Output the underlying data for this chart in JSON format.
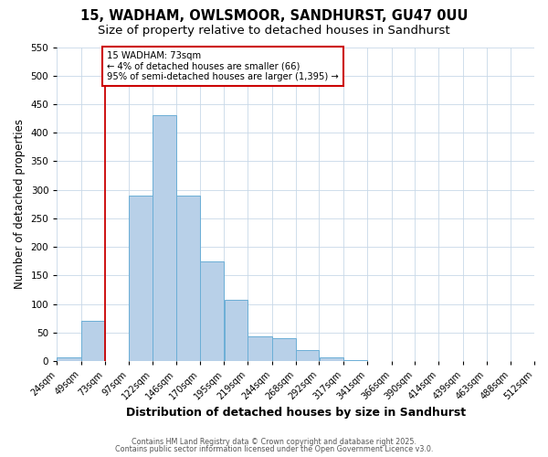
{
  "title1": "15, WADHAM, OWLSMOOR, SANDHURST, GU47 0UU",
  "title2": "Size of property relative to detached houses in Sandhurst",
  "xlabel": "Distribution of detached houses by size in Sandhurst",
  "ylabel": "Number of detached properties",
  "bar_color": "#b8d0e8",
  "bar_edge_color": "#6baed6",
  "bar_heights": [
    7,
    70,
    0,
    290,
    430,
    290,
    175,
    107,
    44,
    40,
    20,
    7,
    2,
    0,
    0,
    0,
    0,
    0,
    0,
    0
  ],
  "tick_labels": [
    "24sqm",
    "49sqm",
    "73sqm",
    "97sqm",
    "122sqm",
    "146sqm",
    "170sqm",
    "195sqm",
    "219sqm",
    "244sqm",
    "268sqm",
    "292sqm",
    "317sqm",
    "341sqm",
    "366sqm",
    "390sqm",
    "414sqm",
    "439sqm",
    "463sqm",
    "488sqm",
    "512sqm"
  ],
  "ylim": [
    0,
    550
  ],
  "yticks": [
    0,
    50,
    100,
    150,
    200,
    250,
    300,
    350,
    400,
    450,
    500,
    550
  ],
  "annotation_title": "15 WADHAM: 73sqm",
  "annotation_line1": "← 4% of detached houses are smaller (66)",
  "annotation_line2": "95% of semi-detached houses are larger (1,395) →",
  "annotation_box_color": "#ffffff",
  "annotation_border_color": "#cc0000",
  "footer1": "Contains HM Land Registry data © Crown copyright and database right 2025.",
  "footer2": "Contains public sector information licensed under the Open Government Licence v3.0.",
  "bg_color": "#ffffff",
  "grid_color": "#c8d8e8",
  "title_fontsize": 10.5,
  "subtitle_fontsize": 9.5,
  "axis_label_fontsize": 8.5,
  "tick_fontsize": 7,
  "footer_fontsize": 5.8
}
